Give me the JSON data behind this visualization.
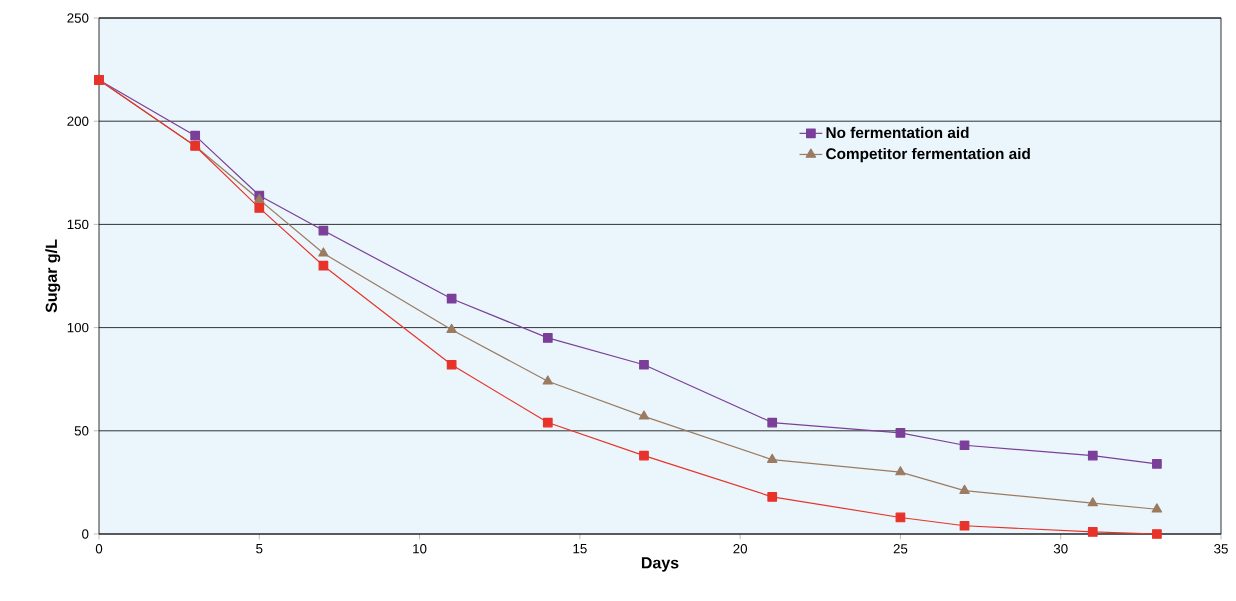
{
  "chart_data": {
    "type": "line",
    "xlabel": "Days",
    "ylabel": "Sugar g/L",
    "x": [
      0,
      3,
      5,
      7,
      11,
      14,
      17,
      21,
      25,
      27,
      31,
      33
    ],
    "series": [
      {
        "name": "No fermentation aid",
        "color": "#7b3f99",
        "marker": "square",
        "values": [
          220,
          193,
          164,
          147,
          114,
          95,
          82,
          54,
          49,
          43,
          38,
          34
        ]
      },
      {
        "name": "Competitor fermentation aid",
        "color": "#9b7b62",
        "marker": "triangle",
        "values": [
          220,
          188,
          162,
          136,
          99,
          74,
          57,
          36,
          30,
          21,
          15,
          12
        ]
      },
      {
        "color": "#e8332a",
        "marker": "square",
        "values": [
          220,
          188,
          158,
          130,
          82,
          54,
          38,
          18,
          8,
          4,
          1,
          0
        ]
      }
    ],
    "xlim": [
      0,
      35
    ],
    "ylim": [
      0,
      250
    ],
    "xticks": [
      0,
      5,
      10,
      15,
      20,
      25,
      30,
      35
    ],
    "yticks": [
      0,
      50,
      100,
      150,
      200,
      250
    ],
    "grid": "y",
    "legend": "top right",
    "line_style": "solid"
  }
}
